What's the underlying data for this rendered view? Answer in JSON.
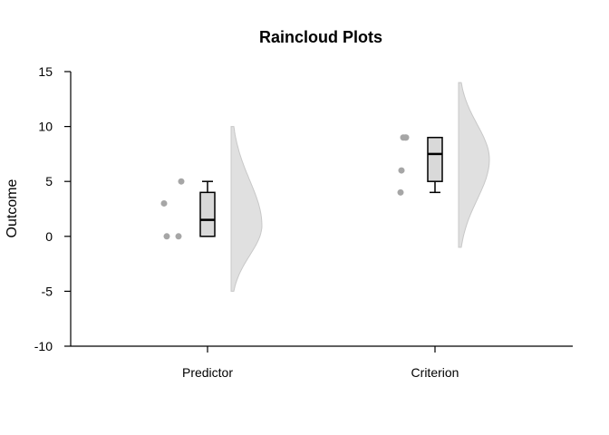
{
  "chart_data": {
    "type": "raincloud",
    "title": "Raincloud Plots",
    "xlabel": "",
    "ylabel": "Outcome",
    "ylim": [
      -10,
      15
    ],
    "yticks": [
      "15",
      "10",
      "5",
      "0",
      "-5",
      "-10"
    ],
    "grid": false,
    "categories": [
      "Predictor",
      "Criterion"
    ],
    "groups": [
      {
        "name": "Predictor",
        "points": [
          0,
          0,
          3,
          5
        ],
        "box": {
          "min": 0,
          "q1": 0,
          "median": 1.5,
          "q3": 4,
          "max": 5
        },
        "density_range": [
          -5,
          10
        ],
        "density_peak": 1
      },
      {
        "name": "Criterion",
        "points": [
          4,
          6,
          9,
          9
        ],
        "box": {
          "min": 4,
          "q1": 5,
          "median": 7.5,
          "q3": 9,
          "max": 9
        },
        "density_range": [
          -1,
          14
        ],
        "density_peak": 7
      }
    ],
    "colors": {
      "points": "#a6a6a6",
      "box_fill": "#d9d9d9",
      "cloud_fill": "#e0e0e0",
      "cloud_stroke": "#c8c8c8"
    }
  }
}
